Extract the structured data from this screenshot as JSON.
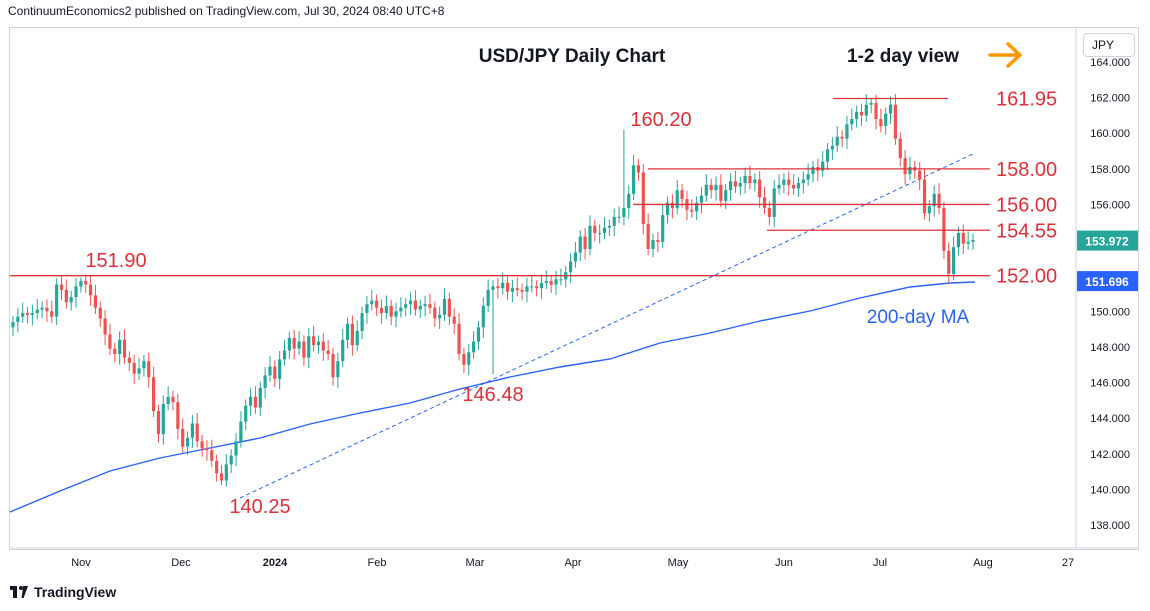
{
  "header": "ContinuumEconomics2 published on TradingView.com, Jul 30, 2024 08:40 UTC+8",
  "currency": "JPY",
  "footer_brand": "TradingView",
  "title": "USD/JPY Daily Chart",
  "view_label": "1-2 day view",
  "colors": {
    "up": "#26a69a",
    "down": "#ef5350",
    "level": "#e0303a",
    "ma": "#2962ff",
    "trend": "#2962ff",
    "arrow": "#ff9800",
    "price_badge": "#26a69a",
    "ma_badge": "#2962ff"
  },
  "chart_data": {
    "type": "candlestick",
    "title": "USD/JPY Daily Chart",
    "ylim": [
      137,
      165
    ],
    "y_ticks": [
      "164.000",
      "162.000",
      "160.000",
      "158.000",
      "156.000",
      "154.000",
      "152.000",
      "150.000",
      "148.000",
      "146.000",
      "144.000",
      "142.000",
      "140.000",
      "138.000"
    ],
    "x_ticks": [
      "Nov",
      "Dec",
      "2024",
      "Feb",
      "Mar",
      "Apr",
      "May",
      "Jun",
      "Jul",
      "Aug",
      "27"
    ],
    "last_price": "153.972",
    "ma_value": "151.696",
    "ma_label": "200-day MA",
    "levels": [
      {
        "label": "161.95",
        "value": 161.95
      },
      {
        "label": "158.00",
        "value": 158.0
      },
      {
        "label": "156.00",
        "value": 156.0
      },
      {
        "label": "154.55",
        "value": 154.55
      },
      {
        "label": "152.00",
        "value": 152.0
      }
    ],
    "annotations": [
      {
        "label": "160.20",
        "value": 160.2
      },
      {
        "label": "151.90",
        "value": 151.9
      },
      {
        "label": "146.48",
        "value": 146.48
      },
      {
        "label": "140.25",
        "value": 140.25
      }
    ],
    "closes": [
      149.4,
      149.7,
      149.9,
      149.8,
      149.9,
      150.1,
      150.2,
      150.0,
      149.7,
      151.5,
      151.2,
      150.5,
      150.8,
      151.4,
      151.7,
      151.5,
      150.9,
      150.2,
      149.6,
      148.7,
      147.9,
      147.6,
      148.4,
      147.4,
      147.1,
      146.5,
      146.8,
      147.2,
      146.3,
      144.4,
      143.1,
      144.8,
      145.2,
      144.9,
      143.4,
      142.4,
      142.9,
      143.7,
      142.7,
      142.3,
      142.2,
      141.6,
      140.9,
      140.5,
      141.4,
      141.9,
      142.7,
      143.8,
      144.7,
      145.2,
      144.6,
      145.7,
      146.4,
      146.9,
      146.2,
      147.3,
      147.8,
      148.5,
      147.9,
      148.3,
      147.4,
      148.6,
      148.1,
      148.3,
      147.8,
      147.6,
      146.3,
      147.2,
      148.4,
      149.3,
      148.1,
      148.9,
      149.9,
      150.4,
      150.6,
      150.2,
      149.9,
      150.3,
      149.7,
      150.0,
      150.2,
      150.4,
      150.6,
      150.1,
      150.3,
      150.4,
      150.2,
      149.6,
      149.8,
      150.7,
      149.7,
      149.3,
      147.6,
      147.0,
      147.7,
      148.3,
      149.1,
      150.3,
      151.2,
      151.4,
      151.3,
      151.6,
      151.1,
      151.3,
      151.2,
      151.1,
      151.4,
      151.4,
      151.3,
      151.6,
      151.7,
      151.5,
      151.8,
      151.8,
      152.2,
      152.8,
      153.3,
      154.2,
      153.5,
      154.8,
      154.4,
      154.4,
      154.7,
      154.8,
      155.3,
      155.3,
      155.8,
      156.6,
      158.2,
      157.8,
      154.9,
      153.5,
      154.0,
      153.9,
      155.4,
      156.1,
      155.8,
      156.8,
      156.3,
      155.7,
      155.6,
      156.1,
      156.5,
      157.1,
      156.8,
      157.1,
      156.2,
      156.8,
      157.3,
      157.0,
      157.2,
      157.6,
      157.2,
      157.4,
      156.4,
      155.8,
      155.3,
      156.9,
      157.1,
      157.4,
      157.1,
      156.9,
      157.2,
      157.4,
      157.7,
      158.1,
      157.9,
      158.4,
      159.1,
      159.3,
      159.8,
      159.7,
      160.5,
      160.8,
      161.2,
      161.0,
      161.6,
      161.7,
      160.8,
      160.4,
      161.1,
      161.6,
      159.7,
      158.6,
      157.7,
      158.1,
      157.9,
      157.4,
      155.5,
      155.9,
      156.6,
      155.8,
      153.4,
      152.1,
      153.6,
      154.4,
      153.8,
      153.9,
      154.0
    ]
  }
}
